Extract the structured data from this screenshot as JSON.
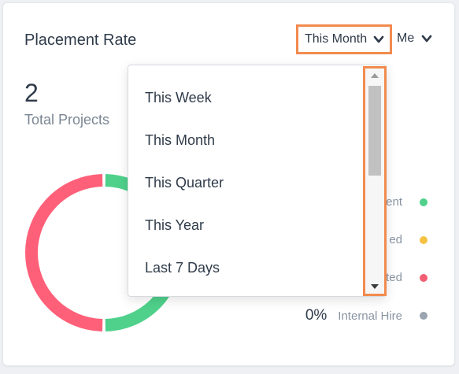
{
  "card": {
    "title": "Placement Rate",
    "period_selected": "This Month",
    "owner_selected": "Me",
    "total_value": "2",
    "total_label": "Total Projects"
  },
  "legend": [
    {
      "pct": "",
      "label": "ent",
      "color": "#4fd18b"
    },
    {
      "pct": "",
      "label": "ed",
      "color": "#f5c242"
    },
    {
      "pct": "",
      "label": "ted",
      "color": "#f25f73"
    },
    {
      "pct": "0%",
      "label": "Internal Hire",
      "color": "#9aa5b1"
    }
  ],
  "donut": {
    "segments": [
      {
        "color": "#4fd18b",
        "fraction": 0.5
      },
      {
        "color": "#ff6079",
        "fraction": 0.5
      }
    ]
  },
  "dropdown": {
    "options": [
      "This Week",
      "This Month",
      "This Quarter",
      "This Year",
      "Last 7 Days"
    ]
  },
  "icons": {
    "period_chevron": "chevron-down-icon",
    "owner_chevron": "chevron-down-icon",
    "scroll_up": "triangle-up-icon",
    "scroll_down": "triangle-down-icon"
  },
  "colors": {
    "highlight": "#f28b4f",
    "text_primary": "#2f3b4a",
    "text_secondary": "#7b8794"
  }
}
